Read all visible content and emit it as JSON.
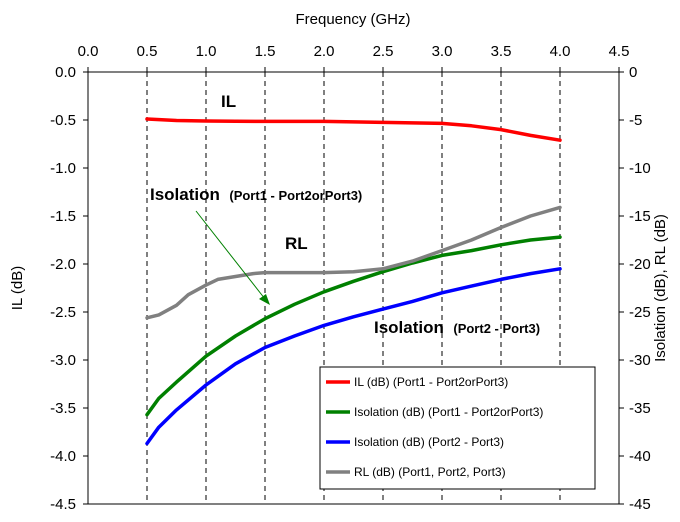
{
  "chart_data": {
    "type": "line",
    "xlabel": "Frequency (GHz)",
    "ylabel_left": "IL (dB)",
    "ylabel_right": "Isolation (dB), RL (dB)",
    "xlim": [
      0.0,
      4.5
    ],
    "ylim_left": [
      -4.5,
      0.0
    ],
    "ylim_right": [
      -45,
      0
    ],
    "x_ticks": [
      "0.0",
      "0.5",
      "1.0",
      "1.5",
      "2.0",
      "2.5",
      "3.0",
      "3.5",
      "4.0",
      "4.5"
    ],
    "y_left_ticks": [
      "0.0",
      "-0.5",
      "-1.0",
      "-1.5",
      "-2.0",
      "-2.5",
      "-3.0",
      "-3.5",
      "-4.0",
      "-4.5"
    ],
    "y_right_ticks": [
      "0",
      "-5",
      "-10",
      "-15",
      "-20",
      "-25",
      "-30",
      "-35",
      "-40",
      "-45"
    ],
    "grid": "dashed vertical",
    "legend_position": "bottom-right",
    "series": [
      {
        "name": "IL (dB) (Port1 - Port2orPort3)",
        "axis": "left",
        "color": "#ff0000",
        "x": [
          0.5,
          0.75,
          1.0,
          1.25,
          1.5,
          1.75,
          2.0,
          2.25,
          2.5,
          2.75,
          3.0,
          3.25,
          3.5,
          3.75,
          4.0
        ],
        "values": [
          -0.49,
          -0.505,
          -0.51,
          -0.512,
          -0.515,
          -0.515,
          -0.515,
          -0.52,
          -0.525,
          -0.53,
          -0.535,
          -0.56,
          -0.6,
          -0.66,
          -0.71
        ]
      },
      {
        "name": "Isolation (dB) (Port1 - Port2orPort3)",
        "axis": "right",
        "color": "#008000",
        "x": [
          0.5,
          0.6,
          0.75,
          1.0,
          1.25,
          1.5,
          1.75,
          2.0,
          2.25,
          2.5,
          2.75,
          3.0,
          3.25,
          3.5,
          3.75,
          4.0
        ],
        "values": [
          -35.7,
          -34.0,
          -32.3,
          -29.6,
          -27.5,
          -25.7,
          -24.2,
          -22.9,
          -21.8,
          -20.8,
          -19.9,
          -19.1,
          -18.6,
          -18.0,
          -17.5,
          -17.2
        ]
      },
      {
        "name": "Isolation (dB) (Port2 - Port3)",
        "axis": "right",
        "color": "#0000ff",
        "x": [
          0.5,
          0.6,
          0.75,
          1.0,
          1.25,
          1.5,
          1.75,
          2.0,
          2.25,
          2.5,
          2.75,
          3.0,
          3.25,
          3.5,
          3.75,
          4.0
        ],
        "values": [
          -38.7,
          -37.0,
          -35.2,
          -32.6,
          -30.4,
          -28.7,
          -27.5,
          -26.4,
          -25.5,
          -24.7,
          -23.9,
          -23.0,
          -22.3,
          -21.6,
          -21.0,
          -20.5
        ]
      },
      {
        "name": "RL (dB) (Port1, Port2, Port3)",
        "axis": "right",
        "color": "#808080",
        "x": [
          0.5,
          0.6,
          0.75,
          0.85,
          1.0,
          1.1,
          1.25,
          1.4,
          1.5,
          1.75,
          2.0,
          2.25,
          2.5,
          2.75,
          3.0,
          3.25,
          3.5,
          3.75,
          4.0
        ],
        "values": [
          -25.6,
          -25.3,
          -24.3,
          -23.2,
          -22.2,
          -21.6,
          -21.3,
          -21.0,
          -20.9,
          -20.9,
          -20.9,
          -20.8,
          -20.5,
          -19.7,
          -18.6,
          -17.5,
          -16.2,
          -15.0,
          -14.1
        ]
      }
    ],
    "annotations": {
      "il": "IL",
      "rl": "RL",
      "iso1_main": "Isolation",
      "iso1_sub": "(Port1 - Port2orPort3)",
      "iso2_main": "Isolation",
      "iso2_sub": "(Port2 - Port3)"
    }
  }
}
